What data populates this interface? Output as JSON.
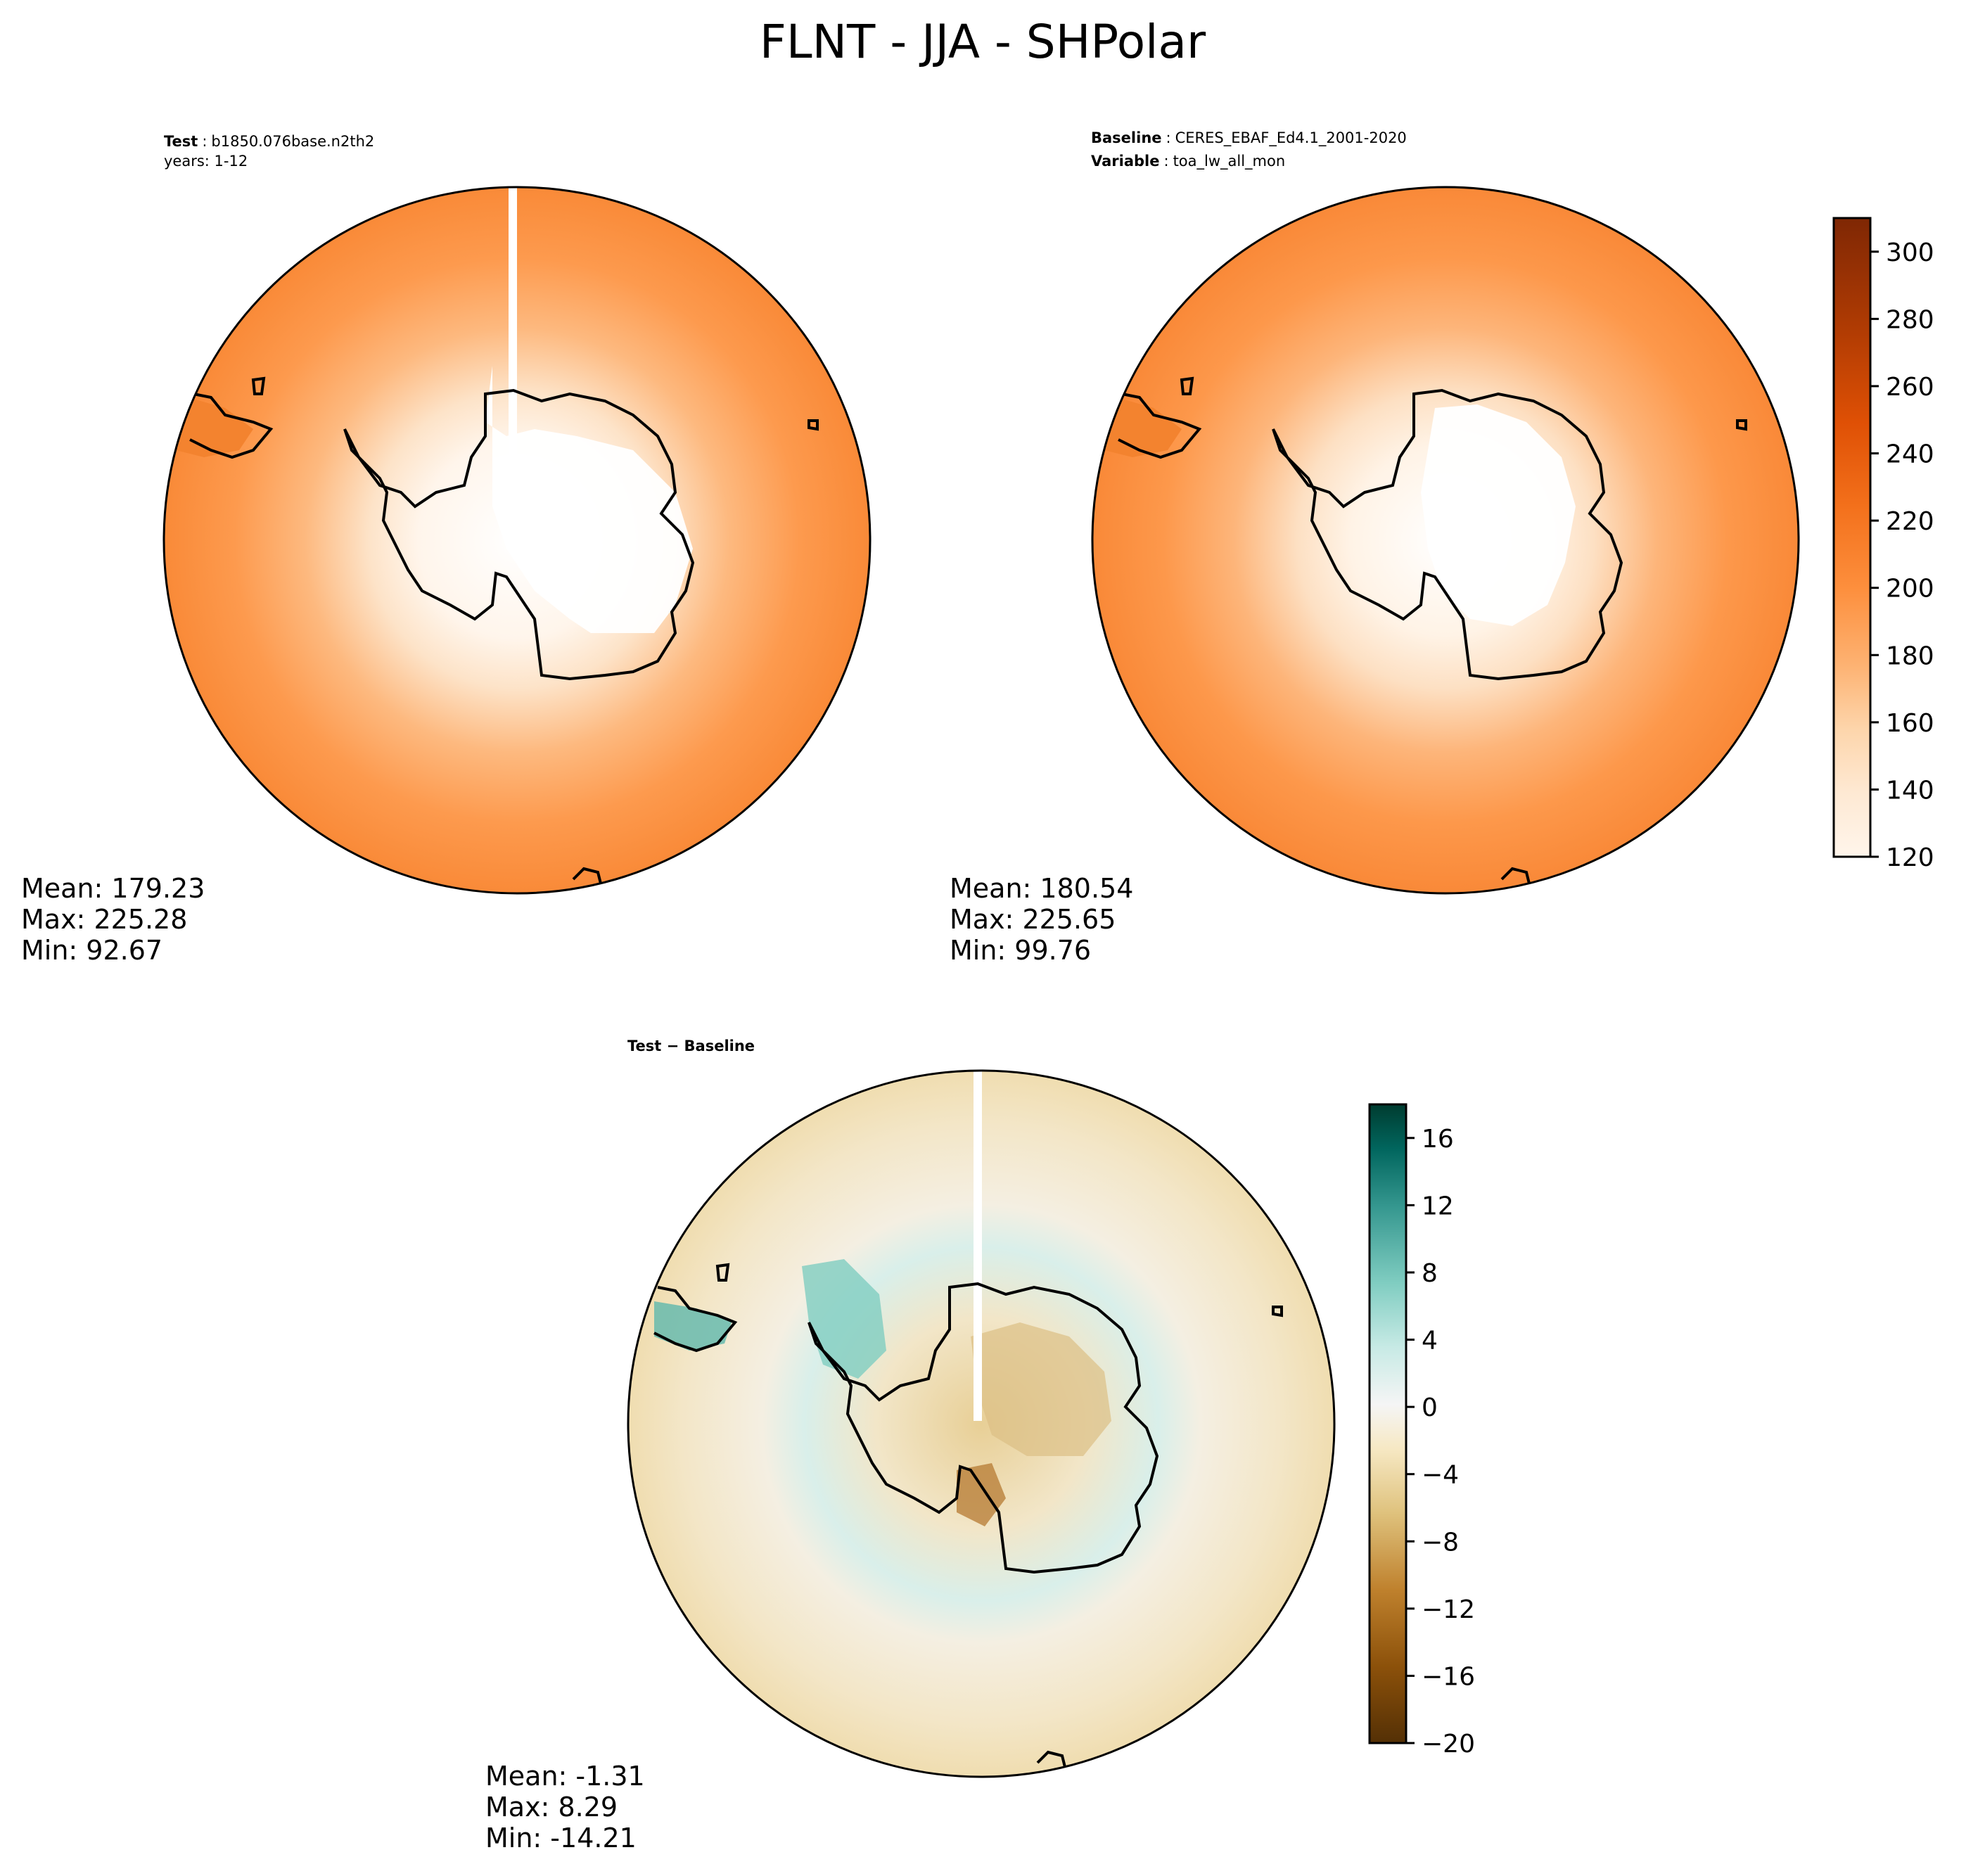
{
  "figure": {
    "title": "FLNT - JJA - SHPolar"
  },
  "panels": {
    "test": {
      "label_bold": "Test",
      "label_value": "b1850.076base.n2th2",
      "line2": "years: 1-12",
      "stats": [
        "Mean: 179.23",
        "Max: 225.28",
        "Min: 92.67"
      ]
    },
    "baseline": {
      "label_bold": "Baseline",
      "label_value": "CERES_EBAF_Ed4.1_2001-2020",
      "label2_bold": "Variable",
      "label2_value": "toa_lw_all_mon",
      "stats": [
        "Mean: 180.54",
        "Max: 225.65",
        "Min: 99.76"
      ]
    },
    "diff": {
      "label": "Test − Baseline",
      "stats": [
        "Mean: -1.31",
        "Max:  8.29",
        "Min: -14.21"
      ]
    }
  },
  "colorbars": {
    "main": {
      "ticks": [
        "120",
        "140",
        "160",
        "180",
        "200",
        "220",
        "240",
        "260",
        "280",
        "300"
      ],
      "range": [
        120,
        310
      ],
      "colormap": [
        "#fff5eb",
        "#fee6ce",
        "#fdd0a2",
        "#fdae6b",
        "#fd8d3c",
        "#f16913",
        "#d94801",
        "#a63603",
        "#7f2704"
      ]
    },
    "diff": {
      "ticks": [
        "−20",
        "−16",
        "−12",
        "−8",
        "−4",
        "0",
        "4",
        "8",
        "12",
        "16"
      ],
      "range": [
        -20,
        18
      ],
      "colormap": [
        "#543005",
        "#8c510a",
        "#bf812d",
        "#dfc27d",
        "#f6e8c3",
        "#f5f5f5",
        "#c7eae5",
        "#80cdc1",
        "#35978f",
        "#01665e",
        "#003c30"
      ]
    }
  },
  "chart_data": [
    {
      "type": "heatmap",
      "title": "Test",
      "projection": "south polar stereographic",
      "value_range": [
        92.67,
        225.28
      ],
      "mean": 179.23,
      "colorbar_range": [
        120,
        310
      ]
    },
    {
      "type": "heatmap",
      "title": "Baseline",
      "projection": "south polar stereographic",
      "value_range": [
        99.76,
        225.65
      ],
      "mean": 180.54,
      "colorbar_range": [
        120,
        310
      ]
    },
    {
      "type": "heatmap",
      "title": "Test − Baseline",
      "projection": "south polar stereographic",
      "value_range": [
        -14.21,
        8.29
      ],
      "mean": -1.31,
      "colorbar_range": [
        -20,
        18
      ]
    }
  ]
}
